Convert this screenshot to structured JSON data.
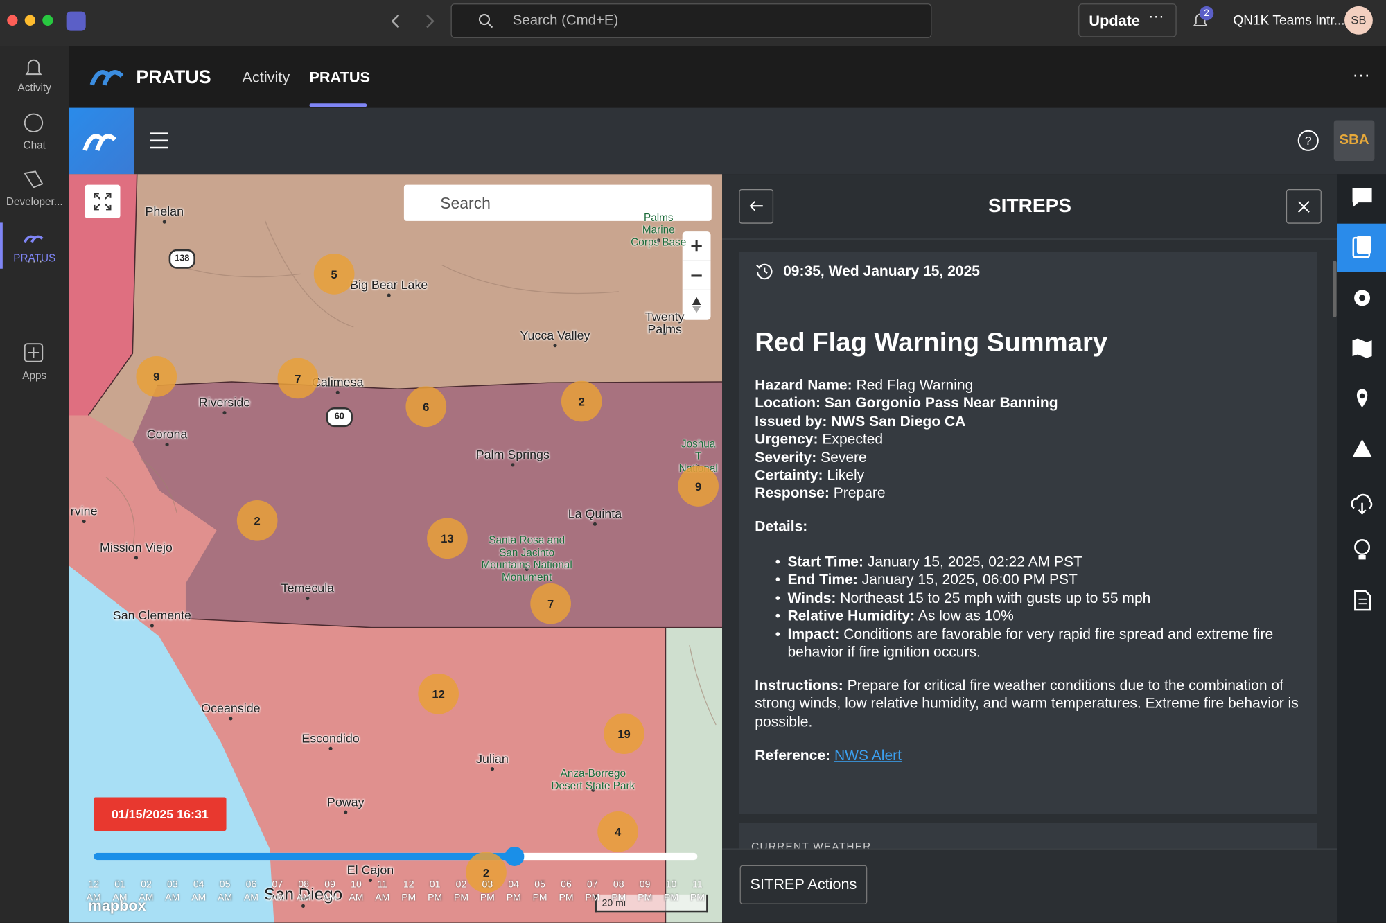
{
  "teams": {
    "search_placeholder": "Search (Cmd+E)",
    "update_button": "Update",
    "notification_count": "2",
    "account": "QN1K Teams Intr...",
    "avatar": "SB"
  },
  "rail": [
    "Activity",
    "Chat",
    "Developer...",
    "PRATUS",
    "Apps"
  ],
  "app_header": {
    "brand": "PRATUS",
    "tabs": [
      "Activity",
      "PRATUS"
    ]
  },
  "toolbar": {
    "user": "SBA"
  },
  "map": {
    "search_placeholder": "Search",
    "places": [
      "Phelan",
      "Big Bear Lake",
      "Yucca Valley",
      "Twenty\nPalms",
      "Calimesa",
      "Riverside",
      "Corona",
      "Palm Springs",
      "La Quinta",
      "rvine",
      "Mission Viejo",
      "Temecula",
      "San Clemente",
      "Santa Rosa and\nSan Jacinto\nMountains National\nMonument",
      "Oceanside",
      "Escondido",
      "Julian",
      "Anza-Borrego\nDesert State Park",
      "Poway",
      "El Cajon",
      "San Diego",
      "Joshua T\nNational",
      "Palms Marine\nCorps Base"
    ],
    "road_shields": [
      "138",
      "60"
    ],
    "clusters": [
      5,
      9,
      7,
      6,
      2,
      9,
      2,
      13,
      7,
      12,
      19,
      4,
      2
    ],
    "timestamp": "01/15/2025 16:31",
    "timeline": [
      {
        "hour": "12",
        "period": "AM"
      },
      {
        "hour": "01",
        "period": "AM"
      },
      {
        "hour": "02",
        "period": "AM"
      },
      {
        "hour": "03",
        "period": "AM"
      },
      {
        "hour": "04",
        "period": "AM"
      },
      {
        "hour": "05",
        "period": "AM"
      },
      {
        "hour": "06",
        "period": "AM"
      },
      {
        "hour": "07",
        "period": "AM"
      },
      {
        "hour": "08",
        "period": "AM"
      },
      {
        "hour": "09",
        "period": "AM"
      },
      {
        "hour": "10",
        "period": "AM"
      },
      {
        "hour": "11",
        "period": "AM"
      },
      {
        "hour": "12",
        "period": "PM"
      },
      {
        "hour": "01",
        "period": "PM"
      },
      {
        "hour": "02",
        "period": "PM"
      },
      {
        "hour": "03",
        "period": "PM"
      },
      {
        "hour": "04",
        "period": "PM"
      },
      {
        "hour": "05",
        "period": "PM"
      },
      {
        "hour": "06",
        "period": "PM"
      },
      {
        "hour": "07",
        "period": "PM"
      },
      {
        "hour": "08",
        "period": "PM"
      },
      {
        "hour": "09",
        "period": "PM"
      },
      {
        "hour": "10",
        "period": "PM"
      },
      {
        "hour": "11",
        "period": "PM"
      }
    ],
    "attribution": "mapbox",
    "scale": "20 mi"
  },
  "sitrep": {
    "title": "SITREPS",
    "timestamp": "09:35, Wed January 15, 2025",
    "heading": "Red Flag Warning Summary",
    "fields": [
      {
        "label": "Hazard Name:",
        "value": "Red Flag Warning"
      },
      {
        "label": "Location:",
        "value": "San Gorgonio Pass Near Banning"
      },
      {
        "label": "Issued by:",
        "value": "NWS San Diego CA"
      },
      {
        "label": "Urgency:",
        "value": "Expected"
      },
      {
        "label": "Severity:",
        "value": "Severe"
      },
      {
        "label": "Certainty:",
        "value": "Likely"
      },
      {
        "label": "Response:",
        "value": "Prepare"
      }
    ],
    "details_heading": "Details:",
    "details": [
      {
        "label": "Start Time:",
        "value": "January 15, 2025, 02:22 AM PST"
      },
      {
        "label": "End Time:",
        "value": "January 15, 2025, 06:00 PM PST"
      },
      {
        "label": "Winds:",
        "value": "Northeast 15 to 25 mph with gusts up to 55 mph"
      },
      {
        "label": "Relative Humidity:",
        "value": "As low as 10%"
      },
      {
        "label": "Impact:",
        "value": "Conditions are favorable for very rapid fire spread and extreme fire behavior if fire ignition occurs."
      }
    ],
    "instructions_label": "Instructions:",
    "instructions": "Prepare for critical fire weather conditions due to the combination of strong winds, low relative humidity, and warm temperatures. Extreme fire behavior is possible.",
    "reference_label": "Reference:",
    "reference_link": "NWS Alert",
    "next_section": "CURRENT WEATHER",
    "actions_button": "SITREP Actions"
  }
}
